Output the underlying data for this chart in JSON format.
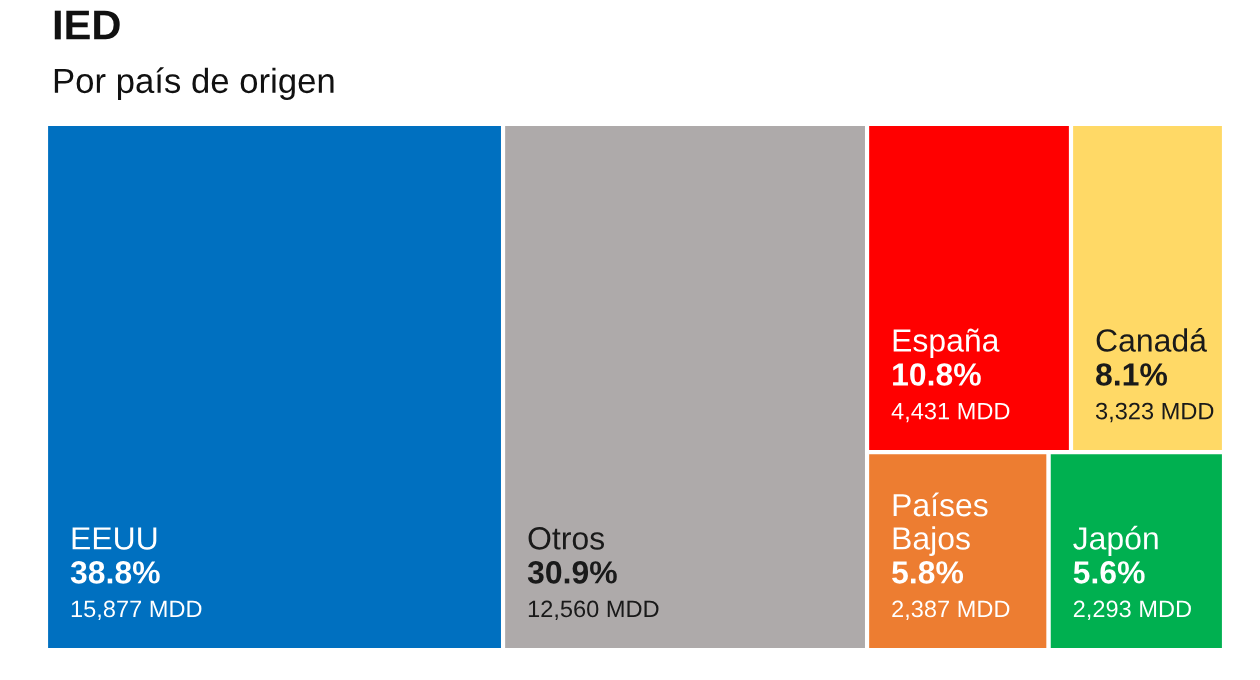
{
  "chart_data": {
    "type": "other",
    "title": "IED",
    "subtitle": "Por país de origen",
    "categories": [
      "EEUU",
      "Otros",
      "España",
      "Canadá",
      "Países Bajos",
      "Japón"
    ],
    "values": [
      38.8,
      30.9,
      10.8,
      8.1,
      5.8,
      5.6
    ],
    "value_labels": [
      "38.8%",
      "30.9%",
      "10.8%",
      "8.1%",
      "5.8%",
      "5.6%"
    ],
    "annotations": [
      "15,877 MDD",
      "12,560 MDD",
      "4,431 MDD",
      "3,323 MDD",
      "2,387 MDD",
      "2,293 MDD"
    ],
    "colors": [
      "#0070c0",
      "#aeaaaa",
      "#ff0000",
      "#ffd966",
      "#ed7d31",
      "#00b050"
    ]
  }
}
